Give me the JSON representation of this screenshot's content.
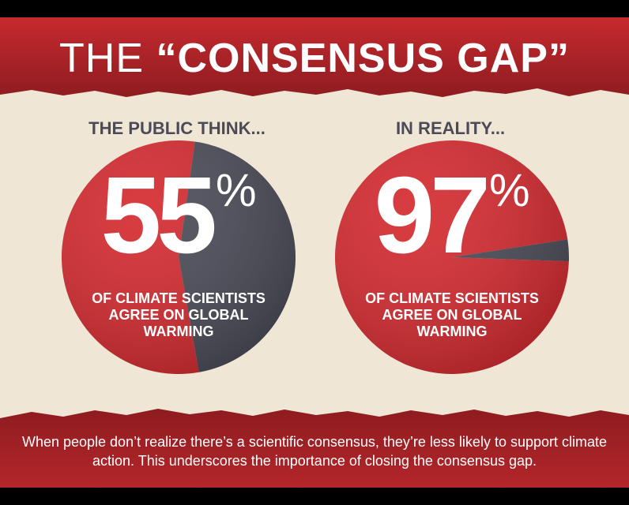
{
  "title": {
    "prefix": "THE",
    "main": "“CONSENSUS GAP”"
  },
  "colors": {
    "red": "#d42a2f",
    "dark_red": "#8a1a1e",
    "slate": "#4a4b57",
    "cream": "#f0e6d6"
  },
  "chart_data": [
    {
      "type": "pie",
      "heading": "THE PUBLIC THINK...",
      "value_label": "55",
      "percent_sign": "%",
      "caption": "OF CLIMATE SCIENTISTS AGREE ON GLOBAL WARMING",
      "slices": [
        {
          "value": 55,
          "color": "#d42a2f"
        },
        {
          "value": 45,
          "color": "#4a4b57"
        }
      ]
    },
    {
      "type": "pie",
      "heading": "IN REALITY...",
      "value_label": "97",
      "percent_sign": "%",
      "caption": "OF CLIMATE SCIENTISTS AGREE ON GLOBAL WARMING",
      "slices": [
        {
          "value": 97,
          "color": "#d42a2f"
        },
        {
          "value": 3,
          "color": "#4a4b57"
        }
      ]
    }
  ],
  "footer": "When people don’t realize there’s a scientific consensus, they’re less likely to support climate action. This underscores the importance of closing the consensus gap."
}
